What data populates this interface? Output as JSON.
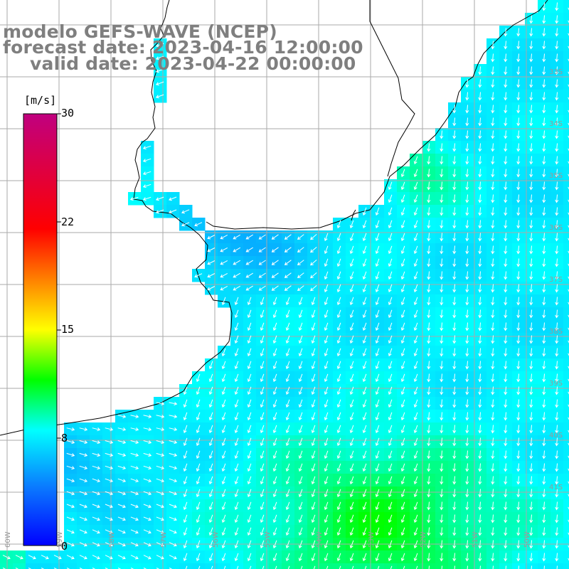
{
  "title": {
    "model": "modelo GEFS-WAVE (NCEP)",
    "forecast": "forecast date: 2023-04-16 12:00:00",
    "valid": "valid date: 2023-04-22 00:00:00"
  },
  "colorbar": {
    "unit": "[m/s]",
    "ticks": [
      "30",
      "22",
      "15",
      "8",
      "0"
    ],
    "min": 0,
    "max": 30,
    "stops": [
      {
        "value": 0,
        "color": "#0000ff"
      },
      {
        "value": 4,
        "color": "#0a78ff"
      },
      {
        "value": 8,
        "color": "#00ffff"
      },
      {
        "value": 11.5,
        "color": "#00ff00"
      },
      {
        "value": 15,
        "color": "#ffff00"
      },
      {
        "value": 18.5,
        "color": "#ff8000"
      },
      {
        "value": 22,
        "color": "#ff0000"
      },
      {
        "value": 30,
        "color": "#c0007f"
      }
    ]
  },
  "map": {
    "lat_labels": [
      "33S",
      "34S",
      "35S",
      "36S",
      "37S",
      "38S",
      "39S",
      "40S",
      "41S"
    ],
    "lon_labels": [
      "60W",
      "59W",
      "58W",
      "57W",
      "56W",
      "55W",
      "54W",
      "53W",
      "52W",
      "51W",
      "50W"
    ],
    "colors": {
      "land": "#ffffff",
      "grid": "#aaaaaa",
      "coast": "#000000",
      "vectors": "#ffffff"
    }
  }
}
